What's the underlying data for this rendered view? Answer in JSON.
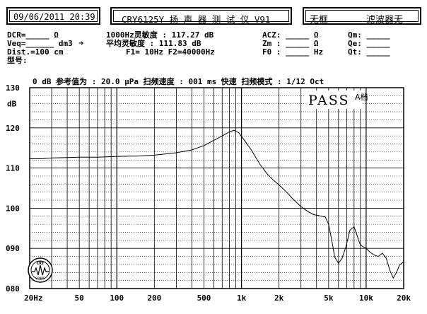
{
  "header": {
    "datetime": "09/06/2011 20:39",
    "title": "CRY6125Y 扬 声 器 测 试 仪  V91",
    "mode_left": "无框",
    "mode_right": "滤波器无"
  },
  "params": {
    "dcr": "DCR=_____ Ω",
    "veq": "Veq=______ dm3",
    "arrow": "➜",
    "dist": "Dist.=100 cm",
    "model": "型号:",
    "sens1": "1000Hz灵敏度 : 117.27 dB",
    "sens2": "平均灵敏度 : 111.83 dB",
    "f1f2": "F1=    10Hz  F2=40000Hz",
    "acz": "ACZ: _____ Ω",
    "zm": "Zm : _____ Ω",
    "f0": "F0 : _____ Hz",
    "qm": "Qm: _____",
    "qe": "Qe: _____",
    "qt": "Qt: _____",
    "refline": "0 dB 参考值为 : 20.0 μPa   扫频速度 : 001 ms 快速  扫频模式 : 1/12 Oct"
  },
  "result": {
    "pass": "PASS",
    "grade": "A档"
  },
  "logo": {
    "text": "CRY",
    "subtext": "SONRE"
  },
  "chart_data": {
    "type": "line",
    "xscale": "log",
    "xlim": [
      20,
      20000
    ],
    "ylim": [
      80,
      130
    ],
    "ylabel": "dB",
    "ytick_labels": [
      "080",
      "090",
      "100",
      "110",
      "120",
      "130"
    ],
    "ytick_values": [
      80,
      90,
      100,
      110,
      120,
      130
    ],
    "xtick_labels": [
      "20Hz",
      "50",
      "100",
      "200",
      "500",
      "1k",
      "2k",
      "5k",
      "10k",
      "20k"
    ],
    "xtick_values": [
      20,
      50,
      100,
      200,
      500,
      1000,
      2000,
      5000,
      10000,
      20000
    ],
    "grid": true,
    "series": [
      {
        "name": "",
        "x": [
          20,
          25,
          30,
          40,
          50,
          70,
          100,
          150,
          200,
          300,
          400,
          500,
          600,
          700,
          800,
          870,
          950,
          1050,
          1200,
          1400,
          1600,
          1800,
          2000,
          2300,
          2600,
          3000,
          3400,
          3800,
          4100,
          4400,
          4700,
          5000,
          5300,
          5600,
          6000,
          6400,
          6900,
          7400,
          8000,
          8500,
          9000,
          10000,
          10800,
          11500,
          12500,
          13500,
          14500,
          15500,
          16500,
          17500,
          18500,
          20000
        ],
        "y": [
          112.3,
          112.3,
          112.5,
          112.6,
          112.7,
          112.7,
          112.9,
          113.0,
          113.2,
          113.8,
          114.5,
          115.6,
          116.9,
          118.0,
          119.0,
          119.4,
          118.8,
          117.0,
          114.5,
          111.0,
          108.6,
          107.0,
          105.8,
          104.0,
          102.2,
          100.4,
          99.2,
          98.4,
          98.2,
          98.0,
          97.8,
          96.0,
          92.0,
          87.8,
          86.3,
          87.5,
          90.5,
          94.5,
          95.4,
          93.0,
          90.8,
          90.0,
          89.0,
          88.4,
          88.0,
          88.8,
          87.5,
          84.5,
          82.6,
          84.0,
          85.8,
          86.7
        ]
      }
    ]
  }
}
